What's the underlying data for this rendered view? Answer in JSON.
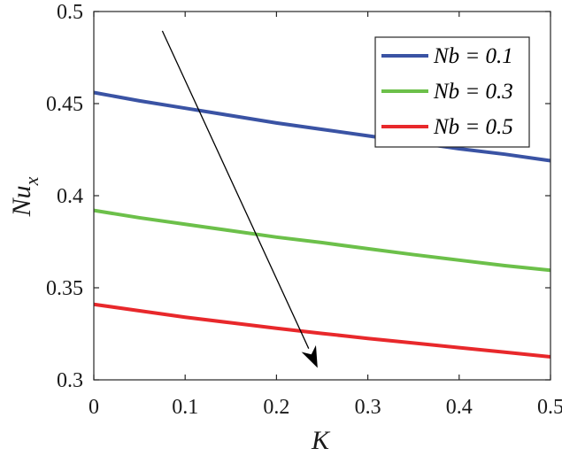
{
  "chart_data": {
    "type": "line",
    "xlabel": "K",
    "ylabel": {
      "base": "Nu",
      "sub": "x"
    },
    "xlim": [
      0,
      0.5
    ],
    "ylim": [
      0.3,
      0.5
    ],
    "xticks": [
      0,
      0.1,
      0.2,
      0.3,
      0.4,
      0.5
    ],
    "xtick_labels": [
      "0",
      "0.1",
      "0.2",
      "0.3",
      "0.4",
      "0.5"
    ],
    "yticks": [
      0.3,
      0.35,
      0.4,
      0.45,
      0.5
    ],
    "ytick_labels": [
      "0.3",
      "0.35",
      "0.4",
      "0.45",
      "0.5"
    ],
    "grid": false,
    "legend_position": "top-right",
    "x": [
      0,
      0.05,
      0.1,
      0.15,
      0.2,
      0.25,
      0.3,
      0.35,
      0.4,
      0.45,
      0.5
    ],
    "series": [
      {
        "name": "Nb = 0.1",
        "color": "#3a53a4",
        "values": [
          0.456,
          0.4515,
          0.4475,
          0.4435,
          0.4395,
          0.436,
          0.4325,
          0.429,
          0.4255,
          0.4225,
          0.419
        ]
      },
      {
        "name": "Nb = 0.3",
        "color": "#6cc04a",
        "values": [
          0.392,
          0.388,
          0.3845,
          0.381,
          0.3775,
          0.3745,
          0.3712,
          0.368,
          0.365,
          0.362,
          0.3595
        ]
      },
      {
        "name": "Nb = 0.5",
        "color": "#e8282b",
        "values": [
          0.341,
          0.3375,
          0.334,
          0.331,
          0.328,
          0.3252,
          0.3225,
          0.32,
          0.3175,
          0.315,
          0.3125
        ]
      }
    ],
    "annotation": {
      "type": "arrow",
      "from": [
        0.075,
        0.4895
      ],
      "to": [
        0.245,
        0.3065
      ],
      "color": "#000000"
    }
  }
}
